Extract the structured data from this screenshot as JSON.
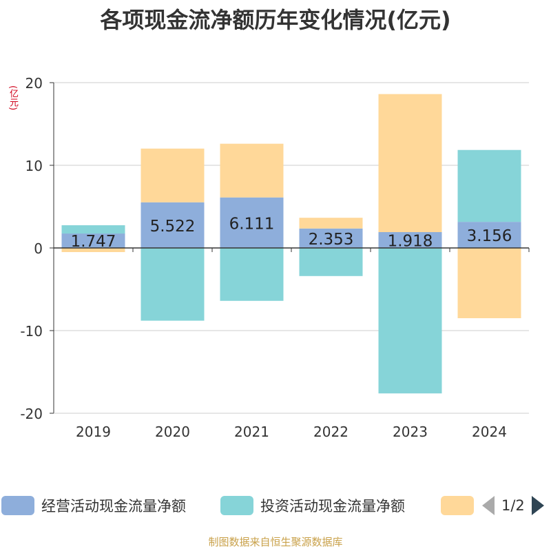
{
  "title": "各项现金流净额历年变化情况(亿元)",
  "unit": "(亿元)",
  "legend": {
    "items": [
      {
        "label": "经营活动现金流量净额",
        "color": "#8eaedb"
      },
      {
        "label": "投资活动现金流量净额",
        "color": "#86d4d8"
      },
      {
        "label": "",
        "color": "#ffd899"
      }
    ],
    "page": "1/2"
  },
  "source": "制图数据来自恒生聚源数据库",
  "chart_data": {
    "type": "bar",
    "stacked": true,
    "categories": [
      "2019",
      "2020",
      "2021",
      "2022",
      "2023",
      "2024"
    ],
    "series": [
      {
        "name": "经营活动现金流量净额",
        "color": "#8eaedb",
        "values": [
          1.747,
          5.522,
          6.111,
          2.353,
          1.918,
          3.156
        ],
        "labels": [
          "1.747",
          "5.522",
          "6.111",
          "2.353",
          "1.918",
          "3.156"
        ]
      },
      {
        "name": "投资活动现金流量净额",
        "color": "#86d4d8",
        "values": [
          1.0,
          -8.8,
          -6.4,
          -3.4,
          -17.6,
          8.7
        ]
      },
      {
        "color": "#ffd899",
        "values": [
          -0.5,
          6.5,
          6.5,
          1.3,
          16.7,
          -8.5
        ]
      }
    ],
    "yticks": [
      20,
      10,
      0,
      -10,
      -20
    ],
    "ylim": [
      -20,
      20
    ],
    "grid": true
  }
}
